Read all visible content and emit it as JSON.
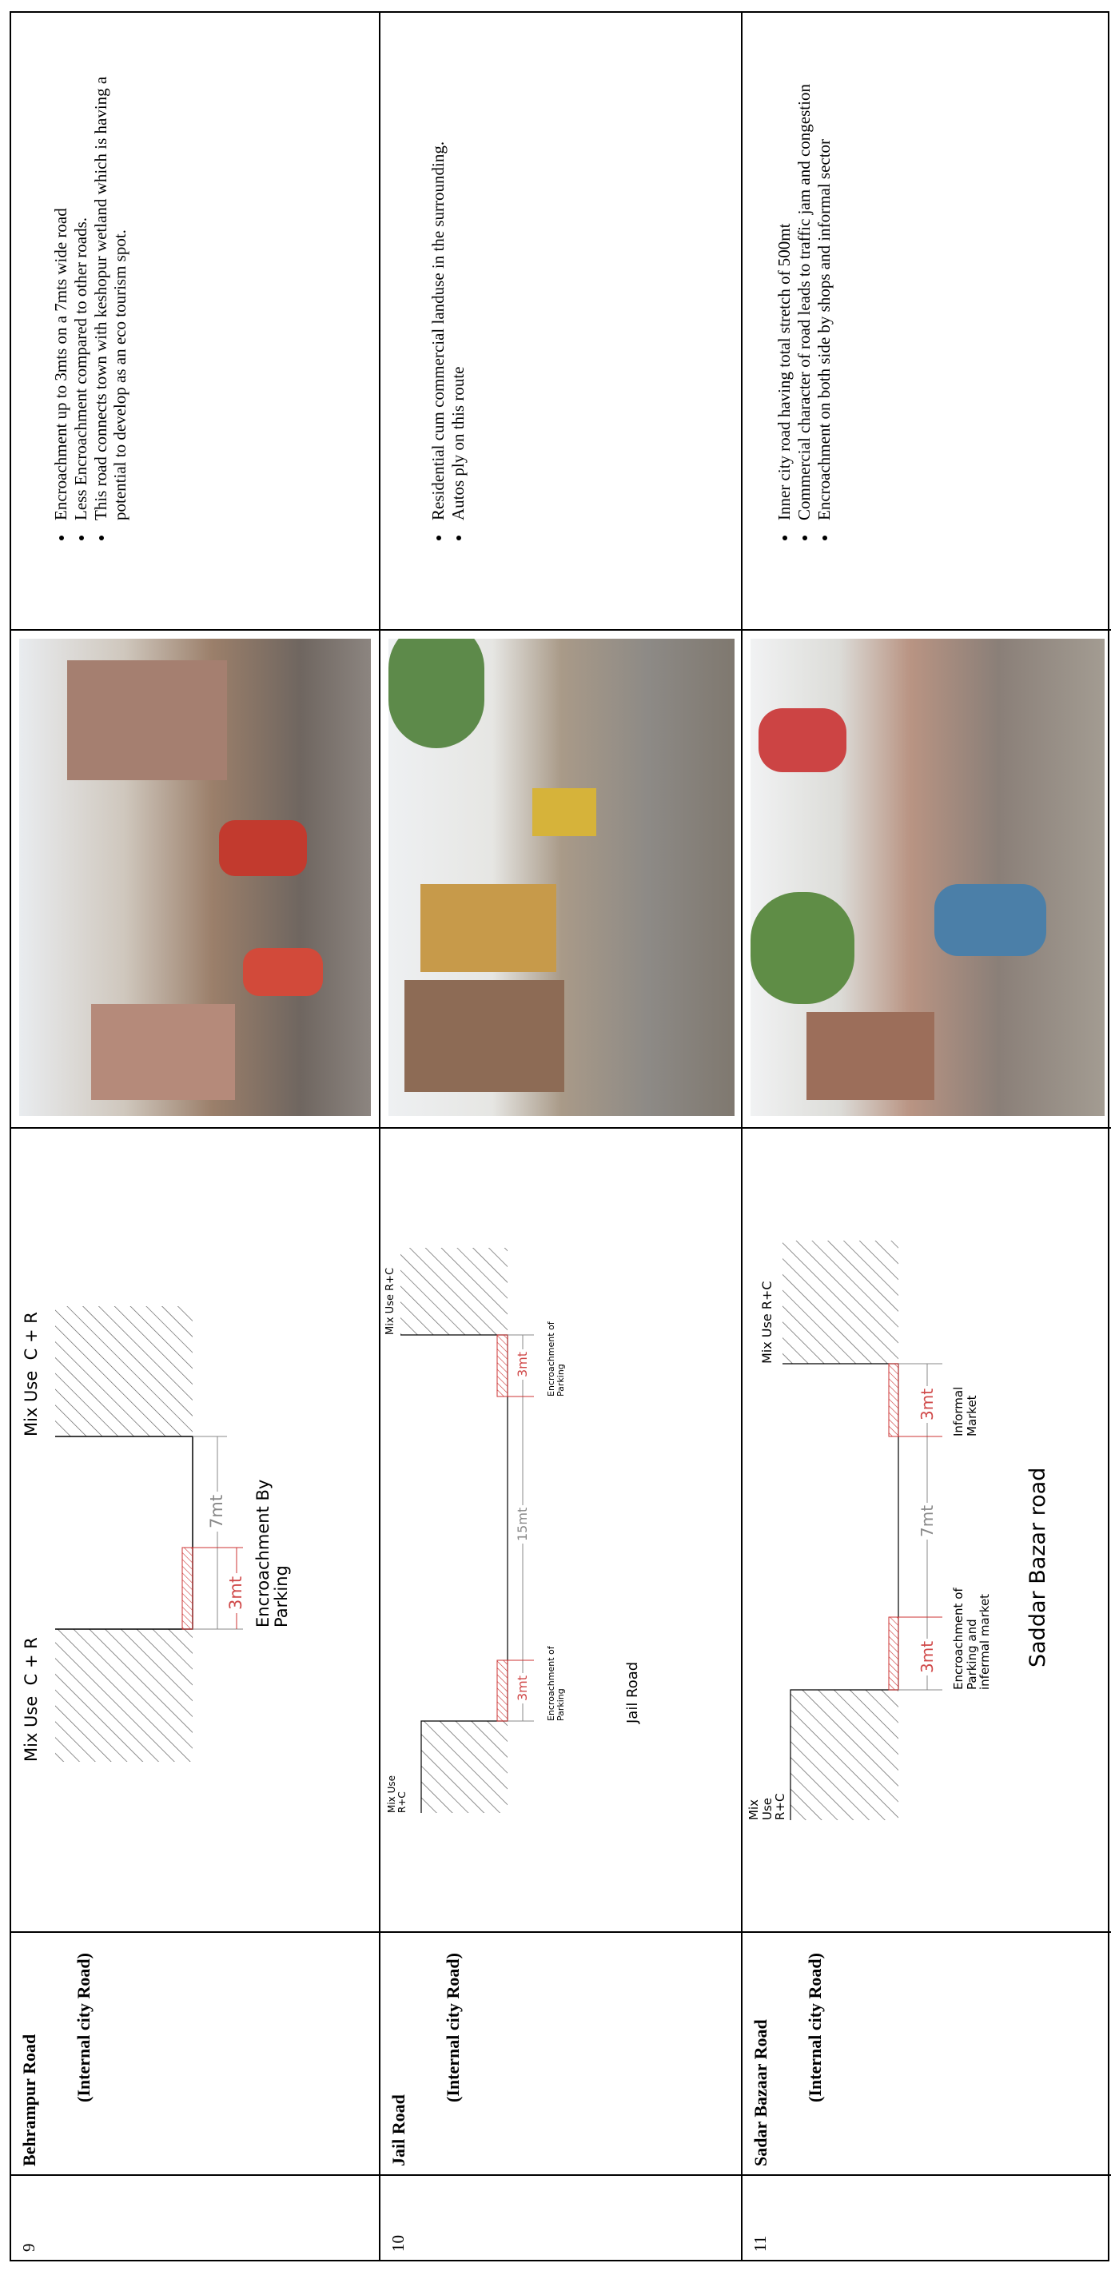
{
  "table": {
    "rows": [
      {
        "no": "9",
        "road": "Behrampur Road",
        "road_type": "(Internal city Road)",
        "diagram": {
          "left_use": "Mix Use  C + R",
          "right_use": "Mix Use  C + R",
          "road_width": "7mt",
          "encroachment_width": "3mt",
          "encroachment_note": "Encroachment By Parking"
        },
        "notes": [
          "Encroachment up to 3mts on a 7mts wide road",
          "Less Encroachment compared to other roads.",
          "This road connects town with keshopur wetland which is having a potential to develop as an eco tourism spot."
        ]
      },
      {
        "no": "10",
        "road": "Jail Road",
        "road_type": "(Internal city Road)",
        "diagram": {
          "left_use": "Mix Use R+C",
          "right_use": "Mix Use R+C",
          "road_width": "15mt",
          "left_encroachment_width": "3mt",
          "right_encroachment_width": "3mt",
          "left_encroachment_note": "Encroachment of Parking",
          "right_encroachment_note": "Encroachment of Parking",
          "caption": "Jail Road"
        },
        "notes": [
          "Residential cum commercial landuse in the surrounding.",
          "Autos ply on this route"
        ]
      },
      {
        "no": "11",
        "road": "Sadar Bazaar Road",
        "road_type": "(Internal city Road)",
        "diagram": {
          "left_use": "Mix Use R+C",
          "right_use": "Mix Use R+C",
          "road_width": "7mt",
          "left_encroachment_width": "3mt",
          "right_encroachment_width": "3mt",
          "left_encroachment_note": "Encroachment of Parking and infermal market",
          "right_encroachment_note": "Informal Market",
          "caption": "Saddar Bazar road"
        },
        "notes": [
          "Inner city road having total stretch of 500mt",
          "Commercial character of road leads to traffic jam and congestion",
          "Encroachment on both side by shops and informal sector"
        ]
      }
    ]
  }
}
